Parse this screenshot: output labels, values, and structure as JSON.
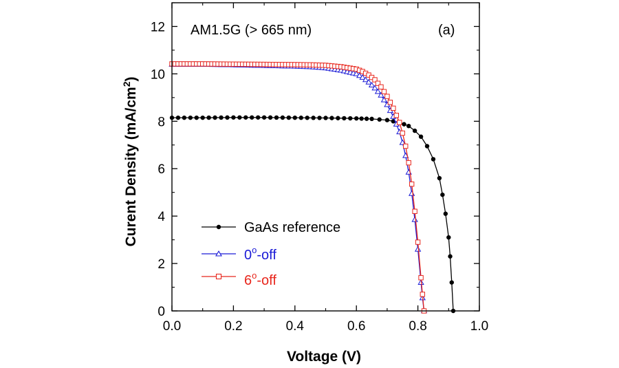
{
  "chart_data": {
    "type": "line",
    "xlabel": "Voltage (V)",
    "ylabel_main": "Curent Density (mA/cm",
    "ylabel_sup": "2",
    "ylabel_close": ")",
    "xlim": [
      0.0,
      1.0
    ],
    "ylim": [
      0,
      13
    ],
    "xticks": [
      0.0,
      0.2,
      0.4,
      0.6,
      0.8,
      1.0
    ],
    "xtick_labels": [
      "0.0",
      "0.2",
      "0.4",
      "0.6",
      "0.8",
      "1.0"
    ],
    "yticks": [
      0,
      2,
      4,
      6,
      8,
      10,
      12
    ],
    "ytick_labels": [
      "0",
      "2",
      "4",
      "6",
      "8",
      "10",
      "12"
    ],
    "annotations": {
      "condition": "AM1.5G (> 665 nm)",
      "panel": "(a)"
    },
    "legend_placement": "lower-left",
    "series": [
      {
        "name": "GaAs reference",
        "name_main": "GaAs reference",
        "name_sup": "",
        "name_suffix": "",
        "color": "#000000",
        "marker": "filled-circle",
        "x": [
          0.0,
          0.1,
          0.2,
          0.3,
          0.4,
          0.5,
          0.6,
          0.65,
          0.7,
          0.74,
          0.77,
          0.79,
          0.81,
          0.83,
          0.85,
          0.87,
          0.88,
          0.89,
          0.9,
          0.905,
          0.91,
          0.915
        ],
        "y": [
          8.15,
          8.15,
          8.16,
          8.16,
          8.15,
          8.14,
          8.12,
          8.1,
          8.05,
          7.95,
          7.8,
          7.6,
          7.35,
          6.95,
          6.4,
          5.6,
          4.9,
          4.1,
          3.1,
          2.3,
          1.2,
          0.0
        ]
      },
      {
        "name": "0o-off",
        "name_main": "0",
        "name_sup": "o",
        "name_suffix": "-off",
        "color": "#1a1ad6",
        "marker": "open-triangle",
        "x": [
          0.0,
          0.1,
          0.2,
          0.3,
          0.4,
          0.45,
          0.5,
          0.55,
          0.6,
          0.62,
          0.64,
          0.66,
          0.68,
          0.7,
          0.72,
          0.74,
          0.75,
          0.76,
          0.77,
          0.78,
          0.79,
          0.8,
          0.81,
          0.815,
          0.82
        ],
        "y": [
          10.4,
          10.4,
          10.38,
          10.35,
          10.32,
          10.3,
          10.25,
          10.15,
          10.0,
          9.85,
          9.65,
          9.4,
          9.1,
          8.7,
          8.2,
          7.55,
          7.1,
          6.55,
          5.85,
          4.95,
          3.85,
          2.6,
          1.2,
          0.55,
          0.0
        ]
      },
      {
        "name": "6o-off",
        "name_main": "6",
        "name_sup": "o",
        "name_suffix": "-off",
        "color": "#e8261c",
        "marker": "open-square",
        "x": [
          0.0,
          0.1,
          0.2,
          0.3,
          0.4,
          0.45,
          0.5,
          0.55,
          0.6,
          0.62,
          0.64,
          0.66,
          0.68,
          0.7,
          0.72,
          0.74,
          0.75,
          0.76,
          0.77,
          0.78,
          0.79,
          0.8,
          0.81,
          0.815,
          0.82
        ],
        "y": [
          10.42,
          10.42,
          10.41,
          10.4,
          10.39,
          10.38,
          10.36,
          10.3,
          10.2,
          10.1,
          9.95,
          9.75,
          9.45,
          9.05,
          8.55,
          7.95,
          7.5,
          6.95,
          6.25,
          5.35,
          4.2,
          2.9,
          1.4,
          0.7,
          0.0
        ]
      }
    ]
  }
}
